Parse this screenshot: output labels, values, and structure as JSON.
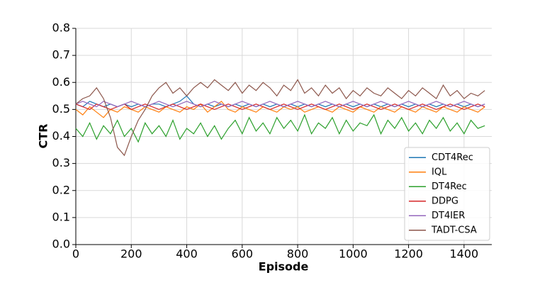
{
  "chart_data": {
    "type": "line",
    "xlabel": "Episode",
    "ylabel": "CTR",
    "xlim": [
      0,
      1500
    ],
    "xticks": [
      0,
      200,
      400,
      600,
      800,
      1000,
      1200,
      1400
    ],
    "ylim": [
      0,
      0.8
    ],
    "yticks": [
      {
        "value": 0,
        "label": "0.0"
      },
      0.1,
      0.2,
      0.3,
      0.4,
      0.5,
      0.6,
      0.7,
      0.8
    ],
    "grid": true,
    "legend": "lower right",
    "x": [
      0,
      25,
      50,
      75,
      100,
      125,
      150,
      175,
      200,
      225,
      250,
      275,
      300,
      325,
      350,
      375,
      400,
      425,
      450,
      475,
      500,
      525,
      550,
      575,
      600,
      625,
      650,
      675,
      700,
      725,
      750,
      775,
      800,
      825,
      850,
      875,
      900,
      925,
      950,
      975,
      1000,
      1025,
      1050,
      1075,
      1100,
      1125,
      1150,
      1175,
      1200,
      1225,
      1250,
      1275,
      1300,
      1325,
      1350,
      1375,
      1400,
      1425,
      1450,
      1475
    ],
    "series": [
      {
        "name": "CDT4Rec",
        "color": "#1f77b4",
        "values": [
          0.52,
          0.51,
          0.53,
          0.52,
          0.51,
          0.52,
          0.51,
          0.52,
          0.51,
          0.52,
          0.51,
          0.52,
          0.52,
          0.51,
          0.52,
          0.53,
          0.55,
          0.52,
          0.51,
          0.52,
          0.51,
          0.52,
          0.51,
          0.52,
          0.51,
          0.52,
          0.51,
          0.52,
          0.51,
          0.52,
          0.51,
          0.52,
          0.51,
          0.52,
          0.51,
          0.52,
          0.51,
          0.52,
          0.51,
          0.52,
          0.51,
          0.52,
          0.51,
          0.52,
          0.51,
          0.52,
          0.51,
          0.52,
          0.51,
          0.52,
          0.51,
          0.52,
          0.51,
          0.52,
          0.51,
          0.52,
          0.51,
          0.52,
          0.51,
          0.52
        ]
      },
      {
        "name": "IQL",
        "color": "#ff7f0e",
        "values": [
          0.5,
          0.48,
          0.51,
          0.49,
          0.47,
          0.5,
          0.49,
          0.51,
          0.5,
          0.49,
          0.51,
          0.5,
          0.49,
          0.51,
          0.5,
          0.49,
          0.51,
          0.5,
          0.52,
          0.49,
          0.51,
          0.53,
          0.5,
          0.49,
          0.51,
          0.5,
          0.49,
          0.51,
          0.5,
          0.49,
          0.51,
          0.5,
          0.51,
          0.49,
          0.5,
          0.51,
          0.5,
          0.49,
          0.51,
          0.5,
          0.49,
          0.51,
          0.5,
          0.49,
          0.51,
          0.5,
          0.49,
          0.51,
          0.5,
          0.49,
          0.51,
          0.5,
          0.49,
          0.51,
          0.5,
          0.49,
          0.51,
          0.5,
          0.49,
          0.51
        ]
      },
      {
        "name": "DT4Rec",
        "color": "#2ca02c",
        "values": [
          0.43,
          0.4,
          0.45,
          0.39,
          0.44,
          0.41,
          0.46,
          0.4,
          0.43,
          0.38,
          0.45,
          0.41,
          0.44,
          0.4,
          0.46,
          0.39,
          0.43,
          0.41,
          0.45,
          0.4,
          0.44,
          0.39,
          0.43,
          0.46,
          0.41,
          0.47,
          0.42,
          0.45,
          0.41,
          0.47,
          0.43,
          0.46,
          0.42,
          0.48,
          0.41,
          0.45,
          0.43,
          0.47,
          0.41,
          0.46,
          0.42,
          0.45,
          0.44,
          0.48,
          0.41,
          0.46,
          0.43,
          0.47,
          0.42,
          0.45,
          0.41,
          0.46,
          0.43,
          0.47,
          0.42,
          0.45,
          0.41,
          0.46,
          0.43,
          0.44
        ]
      },
      {
        "name": "DDPG",
        "color": "#d62728",
        "values": [
          0.52,
          0.51,
          0.5,
          0.52,
          0.51,
          0.5,
          0.51,
          0.52,
          0.5,
          0.51,
          0.52,
          0.51,
          0.5,
          0.51,
          0.52,
          0.51,
          0.5,
          0.51,
          0.52,
          0.51,
          0.5,
          0.51,
          0.52,
          0.51,
          0.5,
          0.51,
          0.52,
          0.51,
          0.5,
          0.51,
          0.52,
          0.51,
          0.5,
          0.51,
          0.52,
          0.51,
          0.5,
          0.51,
          0.52,
          0.51,
          0.5,
          0.51,
          0.52,
          0.51,
          0.5,
          0.51,
          0.52,
          0.51,
          0.5,
          0.51,
          0.52,
          0.51,
          0.5,
          0.51,
          0.52,
          0.51,
          0.5,
          0.51,
          0.52,
          0.51
        ]
      },
      {
        "name": "DT4IER",
        "color": "#9467bd",
        "values": [
          0.52,
          0.53,
          0.52,
          0.51,
          0.53,
          0.52,
          0.51,
          0.52,
          0.53,
          0.52,
          0.51,
          0.52,
          0.53,
          0.52,
          0.51,
          0.52,
          0.53,
          0.52,
          0.51,
          0.52,
          0.53,
          0.52,
          0.51,
          0.52,
          0.53,
          0.52,
          0.51,
          0.52,
          0.53,
          0.52,
          0.51,
          0.52,
          0.53,
          0.52,
          0.51,
          0.52,
          0.53,
          0.52,
          0.51,
          0.52,
          0.53,
          0.52,
          0.51,
          0.52,
          0.53,
          0.52,
          0.51,
          0.52,
          0.53,
          0.52,
          0.51,
          0.52,
          0.53,
          0.52,
          0.51,
          0.52,
          0.53,
          0.52,
          0.51,
          0.52
        ]
      },
      {
        "name": "TADT-CSA",
        "color": "#8c564b",
        "values": [
          0.52,
          0.54,
          0.55,
          0.58,
          0.54,
          0.47,
          0.36,
          0.33,
          0.4,
          0.46,
          0.5,
          0.55,
          0.58,
          0.6,
          0.56,
          0.58,
          0.55,
          0.58,
          0.6,
          0.58,
          0.61,
          0.59,
          0.57,
          0.6,
          0.56,
          0.59,
          0.57,
          0.6,
          0.58,
          0.55,
          0.59,
          0.57,
          0.61,
          0.56,
          0.58,
          0.55,
          0.59,
          0.56,
          0.58,
          0.54,
          0.57,
          0.55,
          0.58,
          0.56,
          0.55,
          0.58,
          0.56,
          0.54,
          0.57,
          0.55,
          0.58,
          0.56,
          0.54,
          0.59,
          0.55,
          0.57,
          0.54,
          0.56,
          0.55,
          0.57
        ]
      }
    ]
  }
}
